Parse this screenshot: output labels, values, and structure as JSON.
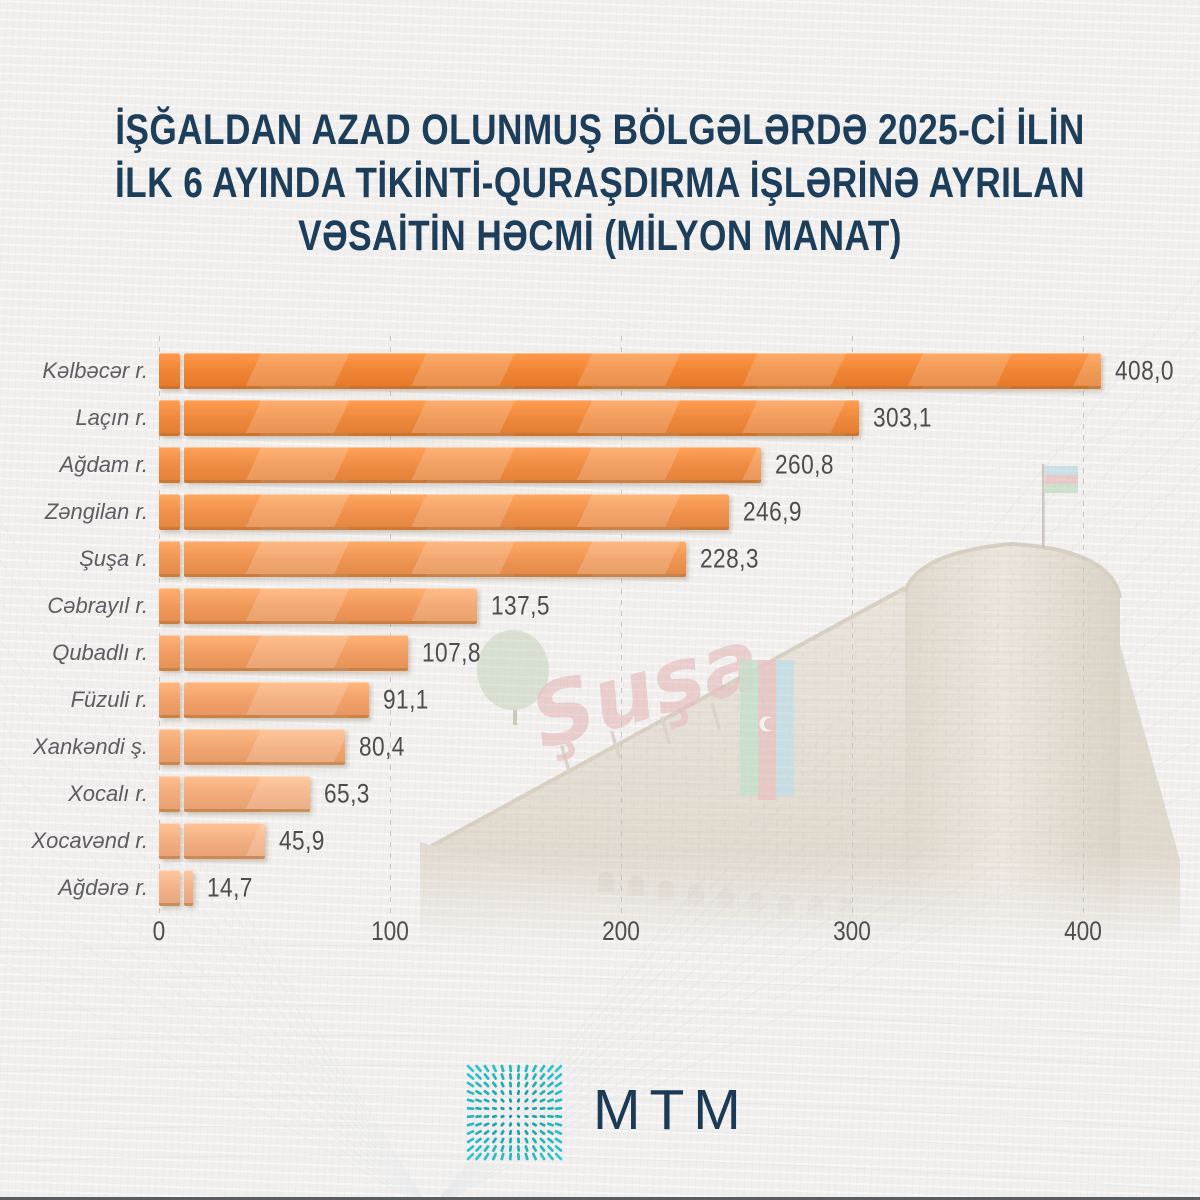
{
  "title": {
    "lines": [
      "İŞĞALDAN AZAD OLUNMUŞ BÖLGƏLƏRDƏ 2025-Cİ İLİN",
      "İLK 6 AYINDA TİKİNTİ-QURAŞDIRMA İŞLƏRİNƏ AYRILAN",
      "VƏSAİTİN HƏCMİ (MİLYON MANAT)"
    ],
    "color": "#1d3e5a"
  },
  "chart_data": {
    "type": "bar",
    "orientation": "horizontal",
    "title": "İşğaldan azad olunmuş bölgələrdə 2025-ci ilin ilk 6 ayında tikinti-quraşdırma işlərinə ayrılan vəsaitin həcmi (milyon manat)",
    "unit": "milyon manat",
    "categories": [
      "Kəlbəcər r.",
      "Laçın r.",
      "Ağdam r.",
      "Zəngilan r.",
      "Şuşa r.",
      "Cəbrayıl r.",
      "Qubadlı r.",
      "Füzuli r.",
      "Xankəndi ş.",
      "Xocalı r.",
      "Xocavənd r.",
      "Ağdərə r."
    ],
    "values": [
      408.0,
      303.1,
      260.8,
      246.9,
      228.3,
      137.5,
      107.8,
      91.1,
      80.4,
      65.3,
      45.9,
      14.7
    ],
    "value_labels": [
      "408,0",
      "303,1",
      "260,8",
      "246,9",
      "228,3",
      "137,5",
      "107,8",
      "91,1",
      "80,4",
      "65,3",
      "45,9",
      "14,7"
    ],
    "x_ticks": [
      "0",
      "100",
      "200",
      "300",
      "400"
    ],
    "xlim": [
      0,
      450
    ],
    "grid": "vertical-dashed",
    "legend": "none",
    "bar_color_top": "#ee8434",
    "bar_color_bottom": "#f2b288",
    "gridline_color": "#c6c6c6",
    "label_color": "#5d5d62",
    "value_color": "#4d4d4d"
  },
  "background": {
    "sign_text": "Şuşa",
    "photo_subject": "fortress-wall-with-tower-and-flag"
  },
  "footer": {
    "logo_text": "MTM",
    "logo_text_color": "#1b3a55",
    "logo_mark_color_inner": "#0e8fa0",
    "logo_mark_color_outer": "#33c7ce"
  }
}
